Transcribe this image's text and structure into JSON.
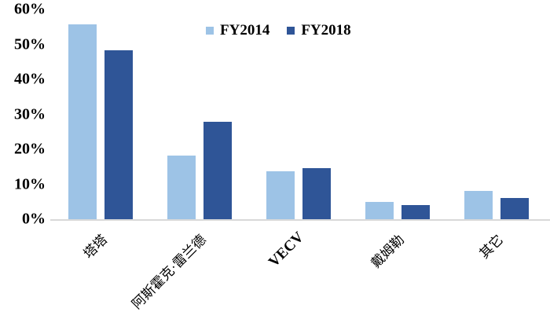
{
  "chart_data": {
    "type": "bar",
    "title": "",
    "xlabel": "",
    "ylabel": "",
    "ylim": [
      0,
      60
    ],
    "yticks": [
      "0%",
      "10%",
      "20%",
      "30%",
      "40%",
      "50%",
      "60%"
    ],
    "categories": [
      "塔塔",
      "阿斯霍克·雷兰德",
      "VECV",
      "戴姆勒",
      "其它"
    ],
    "series": [
      {
        "name": "FY2014",
        "color": "#9dc3e6",
        "values": [
          55.7,
          18.2,
          13.7,
          4.9,
          8.1
        ]
      },
      {
        "name": "FY2018",
        "color": "#2f5597",
        "values": [
          48.3,
          27.9,
          14.6,
          4.0,
          6.1
        ]
      }
    ],
    "legend_position": "top-center",
    "grid": false
  }
}
